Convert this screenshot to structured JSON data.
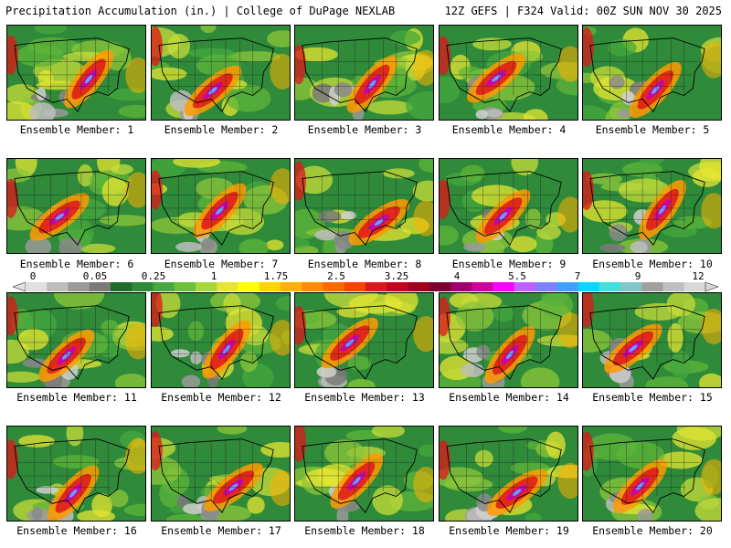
{
  "header": {
    "left": "Precipitation Accumulation (in.) | College of DuPage NEXLAB",
    "right": "12Z GEFS | F324 Valid: 00Z SUN NOV 30 2025"
  },
  "members": [
    {
      "label": "Ensemble Member: 1"
    },
    {
      "label": "Ensemble Member: 2"
    },
    {
      "label": "Ensemble Member: 3"
    },
    {
      "label": "Ensemble Member: 4"
    },
    {
      "label": "Ensemble Member: 5"
    },
    {
      "label": "Ensemble Member: 6"
    },
    {
      "label": "Ensemble Member: 7"
    },
    {
      "label": "Ensemble Member: 8"
    },
    {
      "label": "Ensemble Member: 9"
    },
    {
      "label": "Ensemble Member: 10"
    },
    {
      "label": "Ensemble Member: 11"
    },
    {
      "label": "Ensemble Member: 12"
    },
    {
      "label": "Ensemble Member: 13"
    },
    {
      "label": "Ensemble Member: 14"
    },
    {
      "label": "Ensemble Member: 15"
    },
    {
      "label": "Ensemble Member: 16"
    },
    {
      "label": "Ensemble Member: 17"
    },
    {
      "label": "Ensemble Member: 18"
    },
    {
      "label": "Ensemble Member: 19"
    },
    {
      "label": "Ensemble Member: 20"
    }
  ],
  "scale": {
    "labels": [
      "0",
      "0.05",
      "0.25",
      "1",
      "1.75",
      "2.5",
      "3.25",
      "4",
      "5.5",
      "7",
      "9",
      "12"
    ],
    "colors": [
      "#e0e0e0",
      "#bdbdbd",
      "#9a9a9a",
      "#7a7a7a",
      "#1e6b2a",
      "#2e8b3a",
      "#46a83e",
      "#6cc13a",
      "#a6d83a",
      "#e6e632",
      "#ffff00",
      "#ffd400",
      "#ffb000",
      "#ff8c00",
      "#ff6a00",
      "#ff4000",
      "#e0151a",
      "#c8001e",
      "#a0001e",
      "#7a0030",
      "#a0006e",
      "#d000a0",
      "#ff00ff",
      "#c060ff",
      "#8080ff",
      "#40a0ff",
      "#00d8ff",
      "#40e0e0",
      "#80c8c8",
      "#a0a0a0",
      "#c0c0c0",
      "#d8d8d8"
    ]
  }
}
